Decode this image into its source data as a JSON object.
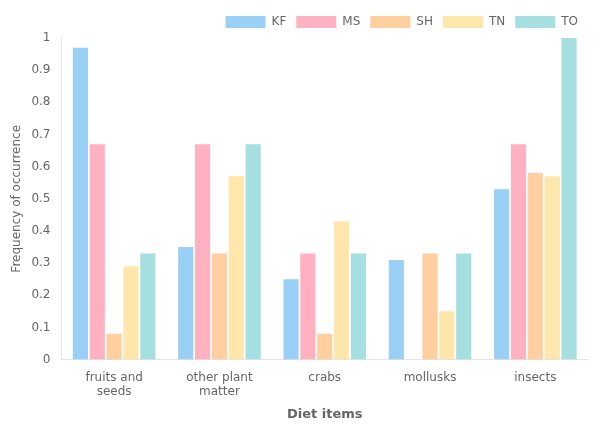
{
  "chart_data": {
    "type": "bar",
    "categories": [
      "fruits and\nseeds",
      "other plant\nmatter",
      "crabs",
      "mollusks",
      "insects"
    ],
    "series": [
      {
        "name": "KF",
        "values": [
          0.97,
          0.35,
          0.25,
          0.31,
          0.53
        ]
      },
      {
        "name": "MS",
        "values": [
          0.67,
          0.67,
          0.33,
          0.0,
          0.67
        ]
      },
      {
        "name": "SH",
        "values": [
          0.08,
          0.33,
          0.08,
          0.33,
          0.58
        ]
      },
      {
        "name": "TN",
        "values": [
          0.29,
          0.57,
          0.43,
          0.15,
          0.57
        ]
      },
      {
        "name": "TO",
        "values": [
          0.33,
          0.67,
          0.33,
          0.33,
          1.0
        ]
      }
    ],
    "xlabel": "Diet items",
    "ylabel": "Frequency of occurrence",
    "ylim": [
      0,
      1.0
    ],
    "yticks": [
      0,
      0.1,
      0.2,
      0.3,
      0.4,
      0.5,
      0.6,
      0.7,
      0.8,
      0.9,
      1
    ],
    "grid": false,
    "legend": "upper right"
  }
}
